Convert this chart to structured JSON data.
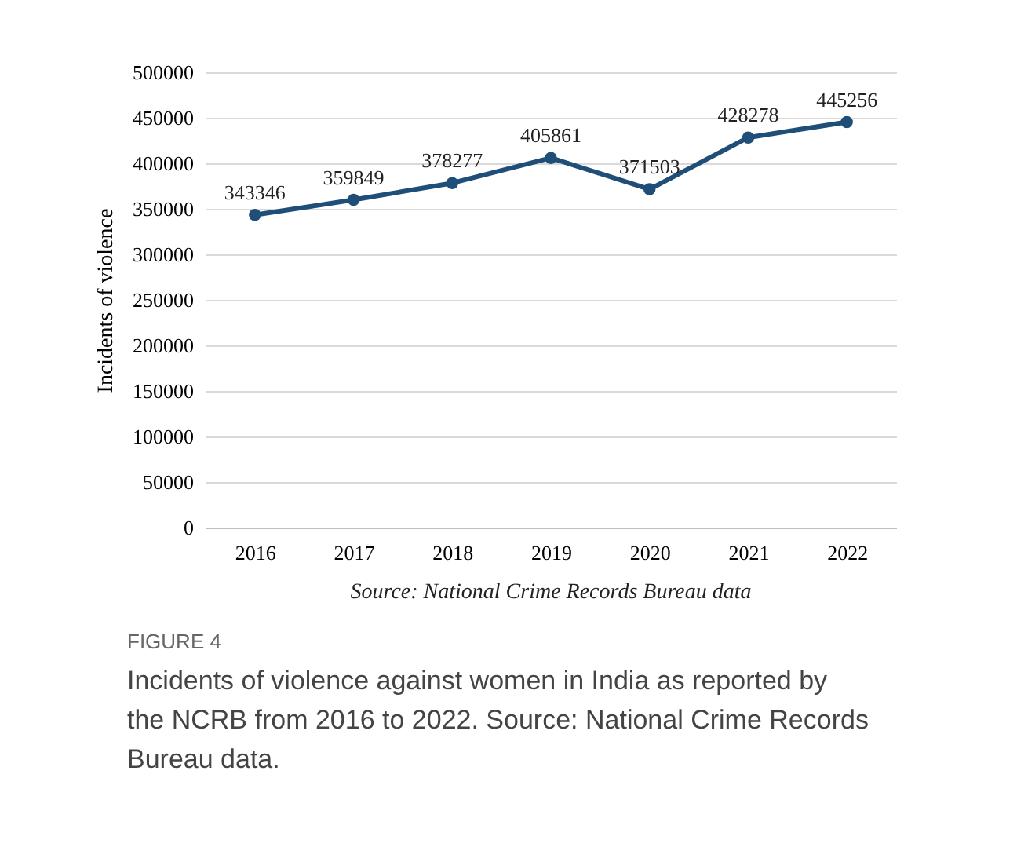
{
  "chart_data": {
    "type": "line",
    "ylabel": "Incidents of violence",
    "categories": [
      "2016",
      "2017",
      "2018",
      "2019",
      "2020",
      "2021",
      "2022"
    ],
    "values": [
      343346,
      359849,
      378277,
      405861,
      371503,
      428278,
      445256
    ],
    "color": "#1f4e79",
    "ylim": [
      0,
      500000
    ],
    "yticks": [
      0,
      50000,
      100000,
      150000,
      200000,
      250000,
      300000,
      350000,
      400000,
      450000,
      500000
    ],
    "grid": "y",
    "marker": "circle",
    "line_style": "solid",
    "data_labels": true,
    "annotations": [
      "Source: National Crime Records Bureau data",
      "FIGURE 4",
      "Incidents of violence against women in India as reported by the NCRB from 2016 to 2022. Source: National Crime Records Bureau data."
    ]
  }
}
